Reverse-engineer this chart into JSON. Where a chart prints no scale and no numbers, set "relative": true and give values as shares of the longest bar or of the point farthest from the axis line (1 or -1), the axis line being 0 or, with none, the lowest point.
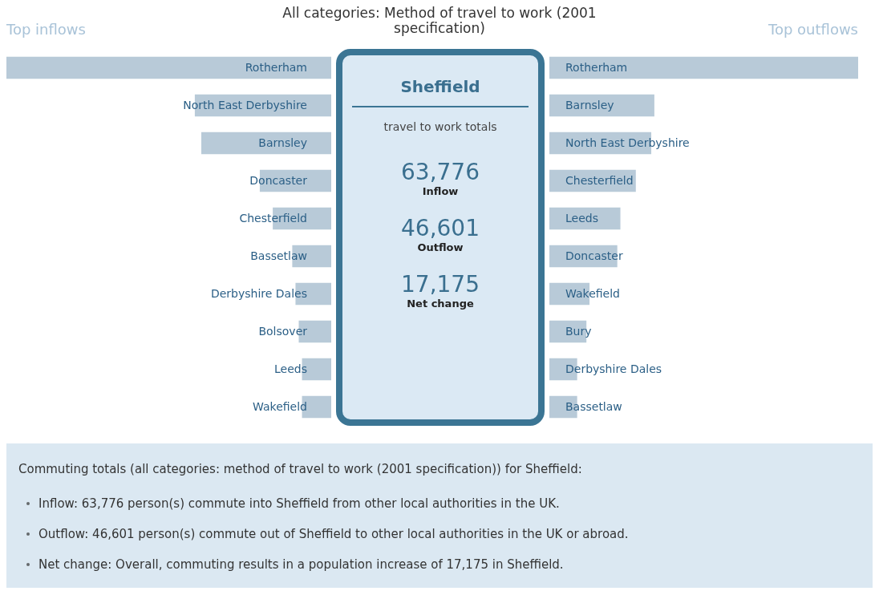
{
  "chart_data": [
    {
      "type": "bar",
      "orientation": "horizontal",
      "relative": true,
      "title": "Top inflows",
      "color": "#b8cad8",
      "categories": [
        "Rotherham",
        "North East Derbyshire",
        "Barnsley",
        "Doncaster",
        "Chesterfield",
        "Bassetlaw",
        "Derbyshire Dales",
        "Bolsover",
        "Leeds",
        "Wakefield"
      ],
      "values": [
        1,
        0.42,
        0.4,
        0.22,
        0.18,
        0.12,
        0.11,
        0.1,
        0.09,
        0.09
      ]
    },
    {
      "type": "other",
      "title": "All categories: Method of travel to work (2001 specification)",
      "subtitle": "Sheffield",
      "annotations": [
        "travel to work totals",
        "63,776",
        "Inflow",
        "46,601",
        "Outflow",
        "17,175",
        "Net change"
      ]
    },
    {
      "type": "bar",
      "orientation": "horizontal",
      "relative": true,
      "title": "Top outflows",
      "color": "#b8cad8",
      "categories": [
        "Rotherham",
        "Barnsley",
        "North East Derbyshire",
        "Chesterfield",
        "Leeds",
        "Doncaster",
        "Wakefield",
        "Bury",
        "Derbyshire Dales",
        "Bassetlaw"
      ],
      "values": [
        1,
        0.34,
        0.33,
        0.28,
        0.23,
        0.22,
        0.13,
        0.12,
        0.09,
        0.09
      ]
    },
    {
      "type": "other",
      "title": "Commuting totals (all categories: method of travel to work (2001 specification)) for Sheffield:",
      "annotations": [
        "Inflow: 63,776 person(s) commute into Sheffield from other local authorities in the UK.",
        "Outflow: 46,601 person(s) commute out of Sheffield to other local authorities in the UK or abroad.",
        "Net change: Overall, commuting results in a population increase of 17,175 in Sheffield."
      ]
    }
  ]
}
